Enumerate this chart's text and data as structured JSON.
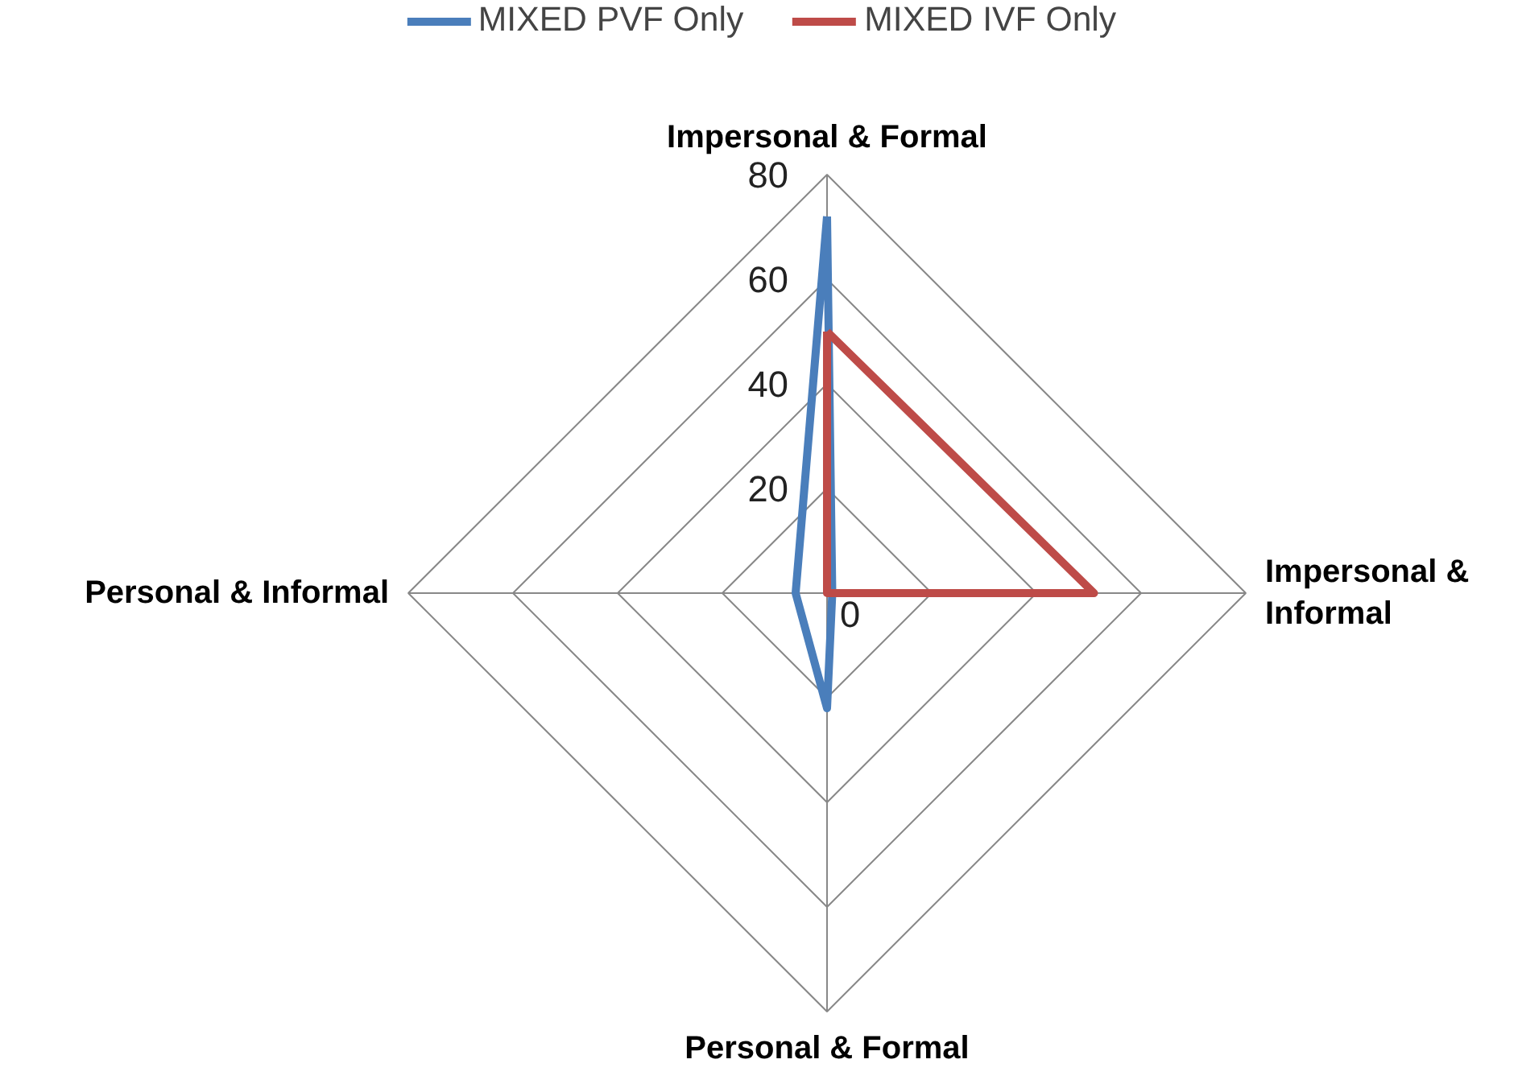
{
  "chart_data": {
    "type": "radar",
    "categories": [
      "Impersonal & Formal",
      "Impersonal & Informal",
      "Personal & Formal",
      "Personal & Informal"
    ],
    "series": [
      {
        "name": "MIXED PVF Only",
        "color": "#4a7ebb",
        "values": [
          72,
          1,
          22,
          6
        ]
      },
      {
        "name": "MIXED IVF Only",
        "color": "#be4b48",
        "values": [
          50,
          51,
          0,
          0
        ]
      }
    ],
    "ylim": [
      0,
      80
    ],
    "yticks": [
      0,
      20,
      40,
      60,
      80
    ],
    "legend": "top",
    "grid": true,
    "marker": "none",
    "line_style": "solid"
  }
}
